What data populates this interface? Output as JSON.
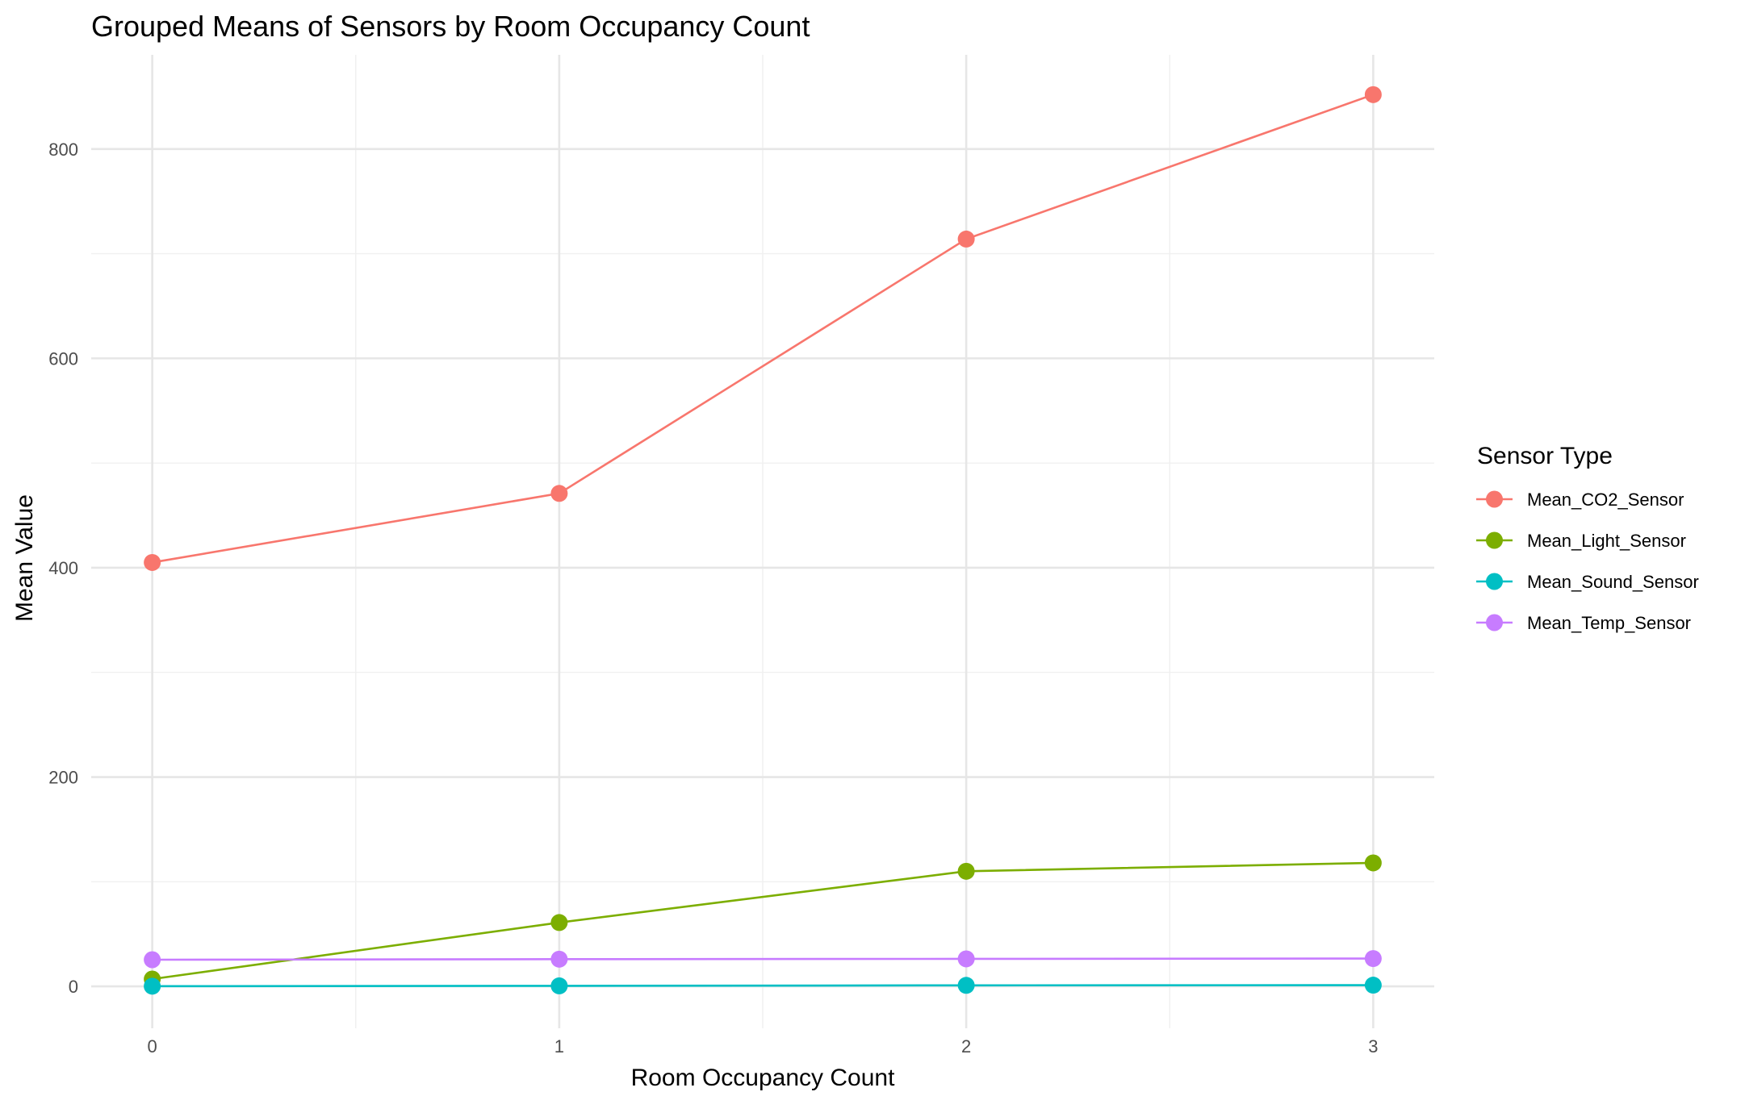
{
  "chart_data": {
    "type": "line",
    "title": "Grouped Means of Sensors by Room Occupancy Count",
    "xlabel": "Room Occupancy Count",
    "ylabel": "Mean Value",
    "x": [
      0,
      1,
      2,
      3
    ],
    "x_ticks": [
      "0",
      "1",
      "2",
      "3"
    ],
    "y_ticks": [
      "0",
      "200",
      "400",
      "600",
      "800"
    ],
    "xlim": [
      -0.15,
      3.15
    ],
    "ylim": [
      -40,
      890
    ],
    "grid": true,
    "legend_title": "Sensor Type",
    "legend_position": "right",
    "series": [
      {
        "name": "Mean_CO2_Sensor",
        "color": "#F8766D",
        "values": [
          405,
          471,
          714,
          852
        ]
      },
      {
        "name": "Mean_Light_Sensor",
        "color": "#7CAE00",
        "values": [
          7,
          61,
          110,
          118
        ]
      },
      {
        "name": "Mean_Sound_Sensor",
        "color": "#00BFC4",
        "values": [
          0.2,
          0.5,
          1.0,
          1.2
        ]
      },
      {
        "name": "Mean_Temp_Sensor",
        "color": "#C77CFF",
        "values": [
          25.5,
          26.0,
          26.3,
          26.6
        ]
      }
    ]
  }
}
